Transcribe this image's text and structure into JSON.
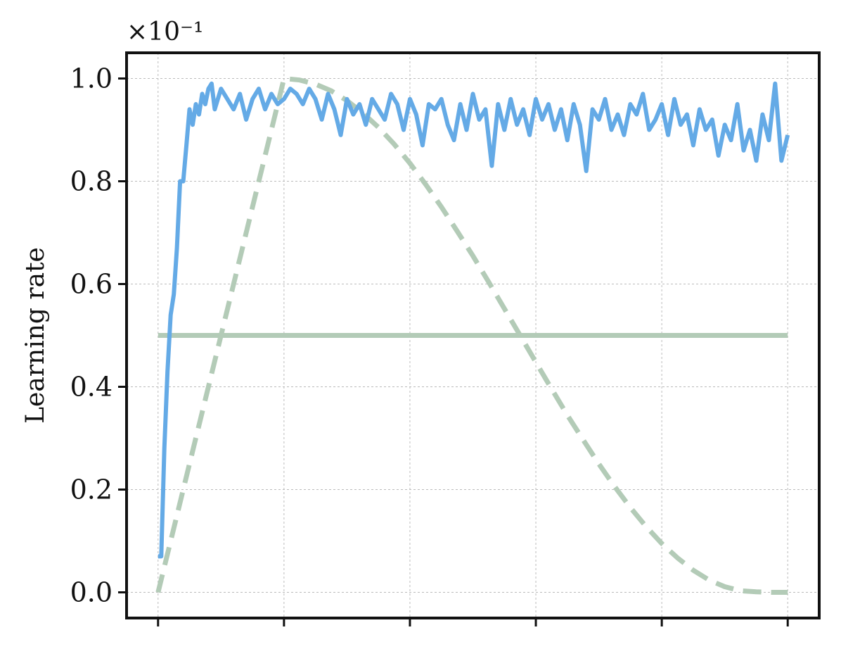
{
  "chart_data": {
    "type": "line",
    "title": "",
    "xlabel": "",
    "ylabel": "Learning rate",
    "y_scale_label": "×10⁻¹",
    "ylim": [
      -0.05,
      1.05
    ],
    "xlim": [
      -0.05,
      1.05
    ],
    "x_ticks": [
      0,
      0.2,
      0.4,
      0.6,
      0.8,
      1.0
    ],
    "x_tick_labels": [
      "",
      "",
      "",
      "",
      "",
      ""
    ],
    "y_ticks": [
      0.0,
      0.2,
      0.4,
      0.6,
      0.8,
      1.0
    ],
    "y_tick_labels": [
      "0.0",
      "0.2",
      "0.4",
      "0.6",
      "0.8",
      "1.0"
    ],
    "grid": true,
    "legend": "none",
    "colors": {
      "adaptive": "#64aae6",
      "schedule": "#b3cbb7",
      "axes": "#111111",
      "grid": "#bbbbbb"
    },
    "series": [
      {
        "style": "solid",
        "color": "#64aae6",
        "x": [
          0.0,
          0.005,
          0.01,
          0.015,
          0.02,
          0.025,
          0.03,
          0.035,
          0.04,
          0.045,
          0.05,
          0.055,
          0.06,
          0.065,
          0.07,
          0.075,
          0.08,
          0.085,
          0.09,
          0.095,
          0.1,
          0.11,
          0.12,
          0.13,
          0.14,
          0.15,
          0.16,
          0.17,
          0.18,
          0.19,
          0.2,
          0.21,
          0.22,
          0.23,
          0.24,
          0.25,
          0.26,
          0.27,
          0.28,
          0.29,
          0.3,
          0.31,
          0.32,
          0.33,
          0.34,
          0.35,
          0.36,
          0.37,
          0.38,
          0.39,
          0.4,
          0.41,
          0.42,
          0.43,
          0.44,
          0.45,
          0.46,
          0.47,
          0.48,
          0.49,
          0.5,
          0.51,
          0.52,
          0.53,
          0.54,
          0.55,
          0.56,
          0.57,
          0.58,
          0.59,
          0.6,
          0.61,
          0.62,
          0.63,
          0.64,
          0.65,
          0.66,
          0.67,
          0.68,
          0.69,
          0.7,
          0.71,
          0.72,
          0.73,
          0.74,
          0.75,
          0.76,
          0.77,
          0.78,
          0.79,
          0.8,
          0.81,
          0.82,
          0.83,
          0.84,
          0.85,
          0.86,
          0.87,
          0.88,
          0.89,
          0.9,
          0.91,
          0.92,
          0.93,
          0.94,
          0.95,
          0.96,
          0.97,
          0.98,
          0.99,
          1.0
        ],
        "y": [
          0.07,
          0.07,
          0.28,
          0.43,
          0.54,
          0.58,
          0.67,
          0.8,
          0.8,
          0.87,
          0.94,
          0.91,
          0.95,
          0.93,
          0.97,
          0.95,
          0.98,
          0.99,
          0.94,
          0.96,
          0.98,
          0.96,
          0.94,
          0.97,
          0.92,
          0.96,
          0.98,
          0.94,
          0.97,
          0.95,
          0.96,
          0.98,
          0.97,
          0.95,
          0.98,
          0.96,
          0.92,
          0.97,
          0.94,
          0.89,
          0.96,
          0.93,
          0.95,
          0.91,
          0.96,
          0.94,
          0.92,
          0.97,
          0.95,
          0.9,
          0.96,
          0.93,
          0.87,
          0.95,
          0.94,
          0.96,
          0.91,
          0.88,
          0.95,
          0.9,
          0.97,
          0.92,
          0.94,
          0.83,
          0.95,
          0.9,
          0.96,
          0.91,
          0.94,
          0.89,
          0.96,
          0.92,
          0.95,
          0.9,
          0.94,
          0.88,
          0.95,
          0.91,
          0.82,
          0.94,
          0.92,
          0.96,
          0.9,
          0.93,
          0.89,
          0.95,
          0.93,
          0.97,
          0.9,
          0.92,
          0.95,
          0.89,
          0.96,
          0.91,
          0.93,
          0.87,
          0.94,
          0.9,
          0.92,
          0.85,
          0.91,
          0.88,
          0.95,
          0.86,
          0.9,
          0.84,
          0.93,
          0.88,
          0.99,
          0.84,
          0.89
        ]
      },
      {
        "style": "dashed",
        "color": "#b3cbb7",
        "x": [
          0.0,
          0.025,
          0.05,
          0.075,
          0.1,
          0.125,
          0.15,
          0.175,
          0.2,
          0.225,
          0.25,
          0.275,
          0.3,
          0.325,
          0.35,
          0.375,
          0.4,
          0.425,
          0.45,
          0.475,
          0.5,
          0.525,
          0.55,
          0.575,
          0.6,
          0.625,
          0.65,
          0.675,
          0.7,
          0.725,
          0.75,
          0.775,
          0.8,
          0.825,
          0.85,
          0.875,
          0.9,
          0.925,
          0.95,
          0.975,
          1.0
        ],
        "y": [
          0.0,
          0.125,
          0.25,
          0.375,
          0.5,
          0.625,
          0.75,
          0.875,
          1.0,
          0.997,
          0.989,
          0.976,
          0.957,
          0.933,
          0.905,
          0.872,
          0.835,
          0.794,
          0.75,
          0.703,
          0.655,
          0.604,
          0.552,
          0.5,
          0.448,
          0.396,
          0.345,
          0.297,
          0.25,
          0.206,
          0.165,
          0.128,
          0.095,
          0.067,
          0.043,
          0.024,
          0.011,
          0.003,
          0.001,
          0.0,
          0.0
        ]
      },
      {
        "style": "solid",
        "color": "#b3cbb7",
        "x": [
          0.0,
          1.0
        ],
        "y": [
          0.5,
          0.5
        ]
      }
    ]
  }
}
